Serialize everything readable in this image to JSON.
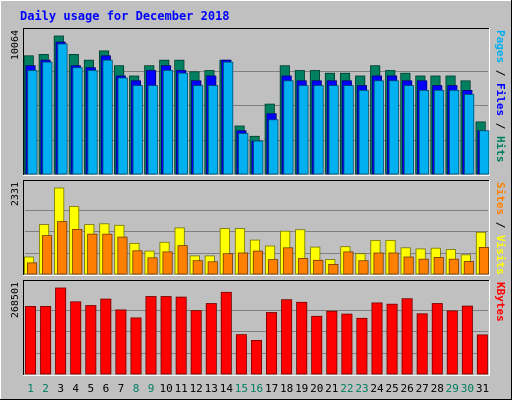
{
  "chart_data": {
    "type": "bar",
    "title": "Daily usage for December 2018",
    "categories": [
      "1",
      "2",
      "3",
      "4",
      "5",
      "6",
      "7",
      "8",
      "9",
      "10",
      "11",
      "12",
      "13",
      "14",
      "15",
      "16",
      "17",
      "18",
      "19",
      "20",
      "21",
      "22",
      "23",
      "24",
      "25",
      "26",
      "27",
      "28",
      "29",
      "30",
      "31"
    ],
    "weekend_days": [
      "1",
      "2",
      "8",
      "9",
      "15",
      "16",
      "22",
      "23",
      "29",
      "30"
    ],
    "panels": [
      {
        "id": "pages",
        "ymax_label": "10064",
        "ymax": 10064,
        "side_label": [
          {
            "text": "Pages",
            "color": "#00b0f0"
          },
          {
            "text": " / ",
            "color": "#000000"
          },
          {
            "text": "Files",
            "color": "#0000ff"
          },
          {
            "text": " / ",
            "color": "#000000"
          },
          {
            "text": "Hits",
            "color": "#008060"
          }
        ],
        "series": [
          {
            "name": "Hits",
            "color": "#008060",
            "values": [
              8620,
              8720,
              10064,
              8720,
              8300,
              8980,
              7900,
              7150,
              7900,
              8300,
              8300,
              7450,
              7550,
              8300,
              3500,
              2750,
              5100,
              7900,
              7550,
              7550,
              7350,
              7350,
              7150,
              7900,
              7550,
              7350,
              7150,
              7150,
              7150,
              6800,
              3800
            ]
          },
          {
            "name": "Files",
            "color": "#0000ff",
            "values": [
              7900,
              8300,
              9620,
              7900,
              7750,
              8620,
              7150,
              6800,
              7550,
              7900,
              7550,
              6800,
              7150,
              8300,
              3150,
              2400,
              4400,
              7150,
              6800,
              6800,
              6800,
              6800,
              6450,
              7150,
              7150,
              6800,
              6800,
              6450,
              6450,
              6100,
              3150
            ]
          },
          {
            "name": "Pages",
            "color": "#00b0f0",
            "values": [
              7550,
              8150,
              9480,
              7750,
              7550,
              8300,
              7000,
              6450,
              6450,
              7550,
              7350,
              6450,
              6450,
              8150,
              2950,
              2400,
              3950,
              6800,
              6450,
              6450,
              6450,
              6450,
              6100,
              6800,
              6800,
              6450,
              6100,
              6100,
              6100,
              5800,
              3150
            ]
          }
        ]
      },
      {
        "id": "visits",
        "ymax_label": "2331",
        "ymax": 2331,
        "side_label": [
          {
            "text": "Sites",
            "color": "#ff8000"
          },
          {
            "text": " / ",
            "color": "#000000"
          },
          {
            "text": "Visits",
            "color": "#ffff00"
          }
        ],
        "series": [
          {
            "name": "Visits",
            "color": "#ffff00",
            "values": [
              460,
              1340,
              2331,
              1830,
              1340,
              1360,
              1320,
              830,
              620,
              860,
              1250,
              490,
              490,
              1230,
              1230,
              920,
              760,
              1160,
              1200,
              730,
              390,
              740,
              550,
              910,
              910,
              710,
              680,
              700,
              660,
              520,
              1130
            ]
          },
          {
            "name": "Sites",
            "color": "#ff8000",
            "values": [
              300,
              1040,
              1420,
              1210,
              1080,
              1080,
              1000,
              630,
              440,
              600,
              770,
              360,
              330,
              550,
              570,
              620,
              390,
              710,
              420,
              370,
              260,
              600,
              360,
              570,
              570,
              460,
              400,
              450,
              400,
              340,
              720
            ]
          }
        ]
      },
      {
        "id": "kbytes",
        "ymax_label": "268501",
        "ymax": 268501,
        "side_label": [
          {
            "text": "KBytes",
            "color": "#ff0000"
          }
        ],
        "series": [
          {
            "name": "KBytes",
            "color": "#ff0000",
            "values": [
              211000,
              211000,
              268501,
              225500,
              214000,
              234000,
              200000,
              175000,
              242000,
              242000,
              240000,
              198000,
              220000,
              255000,
              123000,
              105000,
              192000,
              232000,
              224000,
              180000,
              196000,
              187000,
              174000,
              222000,
              218000,
              235000,
              188000,
              220000,
              197000,
              212000,
              122000
            ]
          }
        ]
      }
    ]
  }
}
